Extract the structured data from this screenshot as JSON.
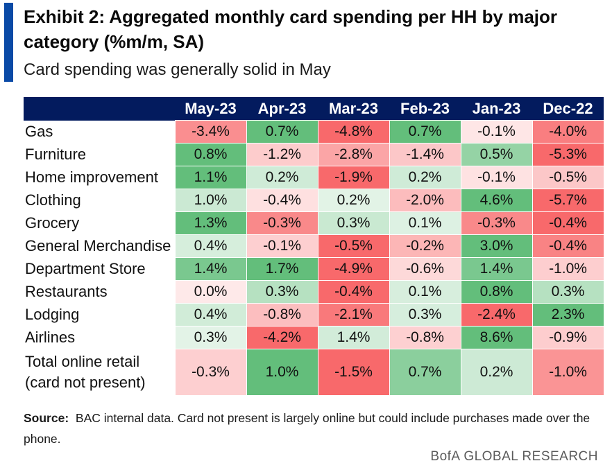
{
  "header": {
    "title": "Exhibit 2: Aggregated monthly card spending per HH by major category (%m/m, SA)",
    "subtitle": "Card spending was generally solid in May"
  },
  "chart_data": {
    "type": "table",
    "columns": [
      "May-23",
      "Apr-23",
      "Mar-23",
      "Feb-23",
      "Jan-23",
      "Dec-22"
    ],
    "rows": [
      {
        "label": "Gas",
        "values": [
          -3.4,
          0.7,
          -4.8,
          0.7,
          -0.1,
          -4.0
        ],
        "display": [
          "-3.4%",
          "0.7%",
          "-4.8%",
          "0.7%",
          "-0.1%",
          "-4.0%"
        ]
      },
      {
        "label": "Furniture",
        "values": [
          0.8,
          -1.2,
          -2.8,
          -1.4,
          0.5,
          -5.3
        ],
        "display": [
          "0.8%",
          "-1.2%",
          "-2.8%",
          "-1.4%",
          "0.5%",
          "-5.3%"
        ]
      },
      {
        "label": "Home improvement",
        "values": [
          1.1,
          0.2,
          -1.9,
          0.2,
          -0.1,
          -0.5
        ],
        "display": [
          "1.1%",
          "0.2%",
          "-1.9%",
          "0.2%",
          "-0.1%",
          "-0.5%"
        ]
      },
      {
        "label": "Clothing",
        "values": [
          1.0,
          -0.4,
          0.2,
          -2.0,
          4.6,
          -5.7
        ],
        "display": [
          "1.0%",
          "-0.4%",
          "0.2%",
          "-2.0%",
          "4.6%",
          "-5.7%"
        ]
      },
      {
        "label": "Grocery",
        "values": [
          1.3,
          -0.3,
          0.3,
          0.1,
          -0.3,
          -0.4
        ],
        "display": [
          "1.3%",
          "-0.3%",
          "0.3%",
          "0.1%",
          "-0.3%",
          "-0.4%"
        ]
      },
      {
        "label": "General Merchandise",
        "values": [
          0.4,
          -0.1,
          -0.5,
          -0.2,
          3.0,
          -0.4
        ],
        "display": [
          "0.4%",
          "-0.1%",
          "-0.5%",
          "-0.2%",
          "3.0%",
          "-0.4%"
        ]
      },
      {
        "label": "Department Store",
        "values": [
          1.4,
          1.7,
          -4.9,
          -0.6,
          1.4,
          -1.0
        ],
        "display": [
          "1.4%",
          "1.7%",
          "-4.9%",
          "-0.6%",
          "1.4%",
          "-1.0%"
        ]
      },
      {
        "label": "Restaurants",
        "values": [
          0.0,
          0.3,
          -0.4,
          0.1,
          0.8,
          0.3
        ],
        "display": [
          "0.0%",
          "0.3%",
          "-0.4%",
          "0.1%",
          "0.8%",
          "0.3%"
        ]
      },
      {
        "label": "Lodging",
        "values": [
          0.4,
          -0.8,
          -2.1,
          0.3,
          -2.4,
          2.3
        ],
        "display": [
          "0.4%",
          "-0.8%",
          "-2.1%",
          "0.3%",
          "-2.4%",
          "2.3%"
        ]
      },
      {
        "label": "Airlines",
        "values": [
          0.3,
          -4.2,
          1.4,
          -0.8,
          8.6,
          -0.9
        ],
        "display": [
          "0.3%",
          "-4.2%",
          "1.4%",
          "-0.8%",
          "8.6%",
          "-0.9%"
        ]
      },
      {
        "label": "Total online retail (card not present)",
        "label_lines": [
          "Total online retail",
          "(card not present)"
        ],
        "values": [
          -0.3,
          1.0,
          -1.5,
          0.7,
          0.2,
          -1.0
        ],
        "display": [
          "-0.3%",
          "1.0%",
          "-1.5%",
          "0.7%",
          "0.2%",
          "-1.0%"
        ]
      }
    ],
    "colors": {
      "positive": "#63be7b",
      "negative": "#f8696b",
      "neutral": "#ffffff",
      "header_bg": "#031b5e",
      "header_text": "#ffffff",
      "accent": "#0a4aa6"
    }
  },
  "footer": {
    "source_label": "Source:",
    "source_text": "BAC internal data. Card not present is largely online but could include purchases made over the phone.",
    "brand": "BofA GLOBAL RESEARCH"
  }
}
